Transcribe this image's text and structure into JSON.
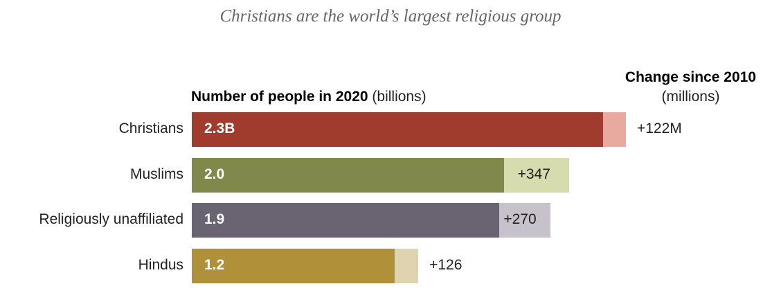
{
  "chart_data": {
    "type": "bar",
    "orientation": "horizontal",
    "stacked": true,
    "title": "Christians are the world’s largest religious group",
    "headers": {
      "value_bold": "Number of people in 2020",
      "value_unit": " (billions)",
      "change_bold": "Change since 2010",
      "change_unit": "(millions)"
    },
    "categories": [
      "Christians",
      "Muslims",
      "Religiously unaffiliated",
      "Hindus"
    ],
    "values_2020_billions": [
      2.3,
      2.0,
      1.9,
      1.2
    ],
    "value_labels": [
      "2.3B",
      "2.0",
      "1.9",
      "1.2"
    ],
    "change_millions": [
      122,
      347,
      270,
      126
    ],
    "change_labels": [
      "+122M",
      "+347",
      "+270",
      "+126"
    ],
    "colors": {
      "bar": [
        "#a03c2e",
        "#80894b",
        "#6a6472",
        "#b0913a"
      ],
      "increment": [
        "#e8a99e",
        "#d6dcae",
        "#c6c1cb",
        "#e0d3b0"
      ]
    },
    "legend": "none",
    "grid": false
  }
}
